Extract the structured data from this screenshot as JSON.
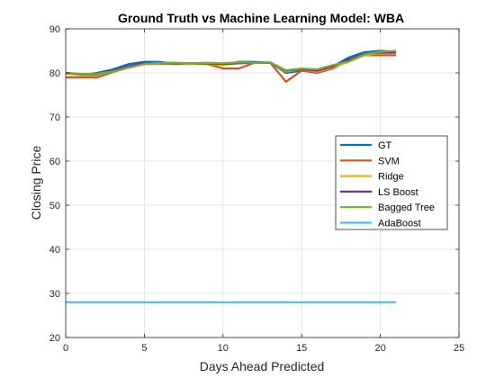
{
  "chart_data": {
    "type": "line",
    "title": "Ground Truth vs Machine Learning Model: WBA",
    "xlabel": "Days Ahead Predicted",
    "ylabel": "Closing Price",
    "xlim": [
      0,
      25
    ],
    "ylim": [
      20,
      90
    ],
    "xticks": [
      0,
      5,
      10,
      15,
      20,
      25
    ],
    "yticks": [
      20,
      30,
      40,
      50,
      60,
      70,
      80,
      90
    ],
    "grid": true,
    "legend_position": "right",
    "x": [
      0,
      1,
      2,
      3,
      4,
      5,
      6,
      7,
      8,
      9,
      10,
      11,
      12,
      13,
      14,
      15,
      16,
      17,
      18,
      19,
      20,
      21
    ],
    "series": [
      {
        "name": "GT",
        "color": "#0072BD",
        "values": [
          80,
          79.5,
          80,
          80.8,
          82,
          82.5,
          82.5,
          82,
          82.2,
          82,
          81.8,
          82.5,
          82.5,
          82.3,
          80,
          80.5,
          80.5,
          81.5,
          83.5,
          84.7,
          85,
          84.8
        ]
      },
      {
        "name": "SVM",
        "color": "#D95319",
        "values": [
          79,
          79,
          79,
          80.2,
          81.2,
          82,
          82,
          82,
          82,
          82,
          81,
          81,
          82.3,
          82.3,
          78,
          80.5,
          80,
          81,
          83,
          84,
          84,
          84
        ]
      },
      {
        "name": "Ridge",
        "color": "#EDB120",
        "values": [
          79.8,
          79.5,
          79.5,
          80.5,
          81.5,
          82,
          82.2,
          82.2,
          82,
          82,
          81.8,
          82.2,
          82.3,
          82.3,
          80.3,
          80.8,
          80.3,
          81.3,
          82.5,
          84,
          84.5,
          84.5
        ]
      },
      {
        "name": "LS Boost",
        "color": "#7E2F8E",
        "values": [
          80,
          79.7,
          79.7,
          80.5,
          81.5,
          82.2,
          82.3,
          82.2,
          82.2,
          82.1,
          82,
          82.2,
          82.3,
          82.3,
          80.5,
          80.8,
          80.5,
          81.5,
          83,
          84.3,
          84.6,
          84.6
        ]
      },
      {
        "name": "Bagged Tree",
        "color": "#77AC30",
        "values": [
          80,
          79.8,
          79.8,
          80.3,
          81.2,
          82,
          82.3,
          82.3,
          82.2,
          82.3,
          82.2,
          82.4,
          82.3,
          82.4,
          80.6,
          81,
          80.8,
          81.8,
          82.6,
          84.2,
          84.8,
          85
        ]
      },
      {
        "name": "AdaBoost",
        "color": "#4DBEEE",
        "values": [
          28,
          28,
          28,
          28,
          28,
          28,
          28,
          28,
          28,
          28,
          28,
          28,
          28,
          28,
          28,
          28,
          28,
          28,
          28,
          28,
          28,
          28
        ]
      }
    ]
  }
}
